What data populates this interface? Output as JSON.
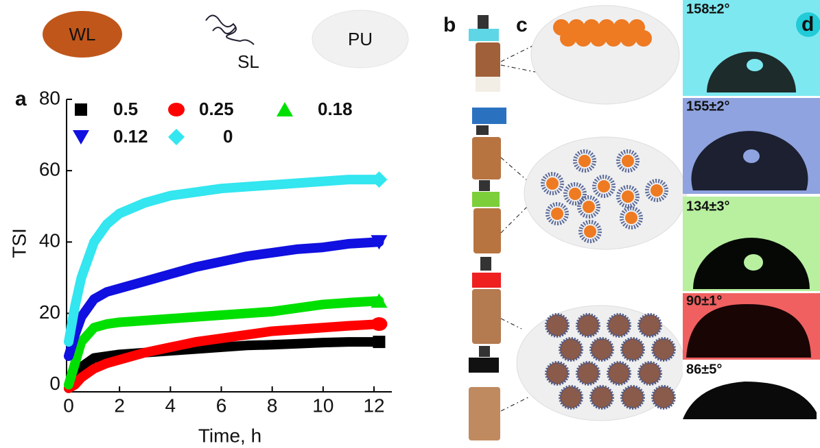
{
  "panel_labels": [
    "a",
    "b",
    "c",
    "d"
  ],
  "component_labels": [
    "WL",
    "SL",
    "PU"
  ],
  "contact_angles": [
    "158±2°",
    "155±2°",
    "134±3°",
    "90±1°",
    "86±5°"
  ],
  "chart_data": {
    "type": "line",
    "xlabel": "Time, h",
    "ylabel": "TSI",
    "x": [
      0,
      0.25,
      0.5,
      1,
      1.5,
      2,
      3,
      4,
      5,
      6,
      7,
      8,
      9,
      10,
      11,
      12.2
    ],
    "xlim": [
      0,
      12.7
    ],
    "ylim": [
      -2,
      80
    ],
    "xticks": [
      0,
      2,
      4,
      6,
      8,
      10,
      12
    ],
    "yticks": [
      0,
      20,
      40,
      60,
      80
    ],
    "series": [
      {
        "name": "0.5",
        "color": "#000000",
        "marker": "square",
        "values": [
          -1,
          1,
          5,
          7.5,
          8,
          8.5,
          9,
          9.5,
          10,
          10.5,
          11,
          11.2,
          11.5,
          11.8,
          12,
          12
        ]
      },
      {
        "name": "0.25",
        "color": "#ff0000",
        "marker": "circle",
        "values": [
          -1,
          0,
          2,
          4.5,
          6,
          7,
          9,
          10.5,
          12,
          13,
          14,
          15,
          15.5,
          16,
          16.5,
          17
        ]
      },
      {
        "name": "0.18",
        "color": "#00e000",
        "marker": "triangle",
        "values": [
          0,
          6,
          12,
          16,
          17,
          17.5,
          18,
          18.5,
          19,
          19.5,
          20,
          20.5,
          21.5,
          22.5,
          23,
          23.5
        ]
      },
      {
        "name": "0.12",
        "color": "#1010e0",
        "marker": "triangle-down",
        "values": [
          8,
          14,
          19,
          24,
          26,
          27,
          29,
          31,
          33,
          34.5,
          36,
          37,
          38,
          38.5,
          39.5,
          40
        ]
      },
      {
        "name": "0",
        "color": "#33e6ef",
        "marker": "diamond",
        "values": [
          12,
          22,
          30,
          40,
          45,
          48,
          51,
          53,
          54,
          55,
          55.5,
          56,
          56.5,
          57,
          57.5,
          57.5
        ]
      }
    ]
  }
}
